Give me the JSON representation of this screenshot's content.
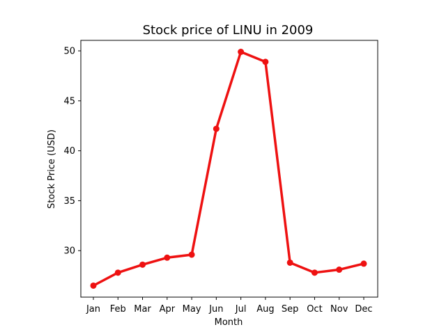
{
  "chart_data": {
    "type": "line",
    "title": "Stock price of LINU in 2009",
    "xlabel": "Month",
    "ylabel": "Stock Price (USD)",
    "categories": [
      "Jan",
      "Feb",
      "Mar",
      "Apr",
      "May",
      "Jun",
      "Jul",
      "Aug",
      "Sep",
      "Oct",
      "Nov",
      "Dec"
    ],
    "values": [
      26.5,
      27.8,
      28.6,
      29.3,
      29.6,
      42.2,
      49.9,
      48.9,
      28.8,
      27.8,
      28.1,
      28.7
    ],
    "ylim": [
      25.35,
      51.05
    ],
    "yticks": [
      30,
      35,
      40,
      45,
      50
    ],
    "grid": false,
    "color": "#ee1111",
    "marker": "circle"
  }
}
